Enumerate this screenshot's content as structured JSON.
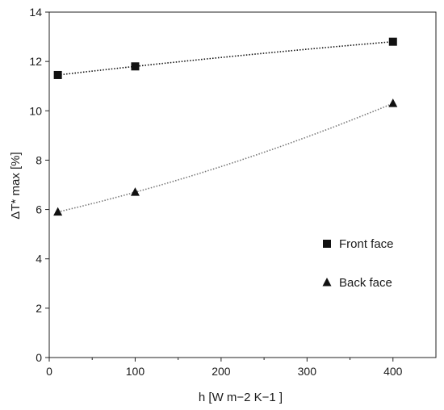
{
  "chart_data": {
    "type": "scatter",
    "title": "",
    "xlabel": "h [W m−2 K−1 ]",
    "ylabel": "ΔT* max  [%]",
    "xlim": [
      0,
      450
    ],
    "ylim": [
      0,
      14
    ],
    "xticks": [
      "0",
      "100",
      "200",
      "300",
      "400"
    ],
    "yticks": [
      "0",
      "2",
      "4",
      "6",
      "8",
      "10",
      "12",
      "14"
    ],
    "grid": false,
    "legend_position": "center-right",
    "series": [
      {
        "name": "Front face",
        "marker": "square",
        "trendline": "dotted",
        "color": "#111111",
        "trend_color": "#111111",
        "x": [
          10,
          100,
          400
        ],
        "y": [
          11.45,
          11.8,
          12.8
        ]
      },
      {
        "name": "Back face",
        "marker": "triangle",
        "trendline": "dotted",
        "color": "#111111",
        "trend_color": "#777777",
        "x": [
          10,
          100,
          400
        ],
        "y": [
          5.9,
          6.7,
          10.3
        ]
      }
    ]
  }
}
